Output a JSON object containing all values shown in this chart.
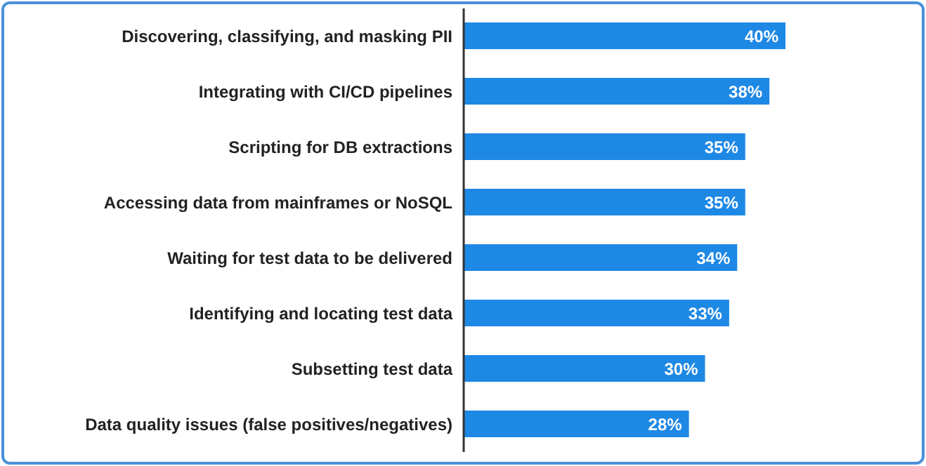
{
  "chart_data": {
    "type": "bar",
    "orientation": "horizontal",
    "categories": [
      "Discovering, classifying, and masking PII",
      "Integrating with CI/CD pipelines",
      "Scripting for DB extractions",
      "Accessing data from mainframes or NoSQL",
      "Waiting for test data to be delivered",
      "Identifying and locating test data",
      "Subsetting test data",
      "Data quality issues (false positives/negatives)"
    ],
    "values": [
      40,
      38,
      35,
      35,
      34,
      33,
      30,
      28
    ],
    "value_labels": [
      "40%",
      "38%",
      "35%",
      "35%",
      "34%",
      "33%",
      "30%",
      "28%"
    ],
    "color": "#1e88e5",
    "grid": false,
    "legend": false,
    "tick_labels": "y"
  }
}
